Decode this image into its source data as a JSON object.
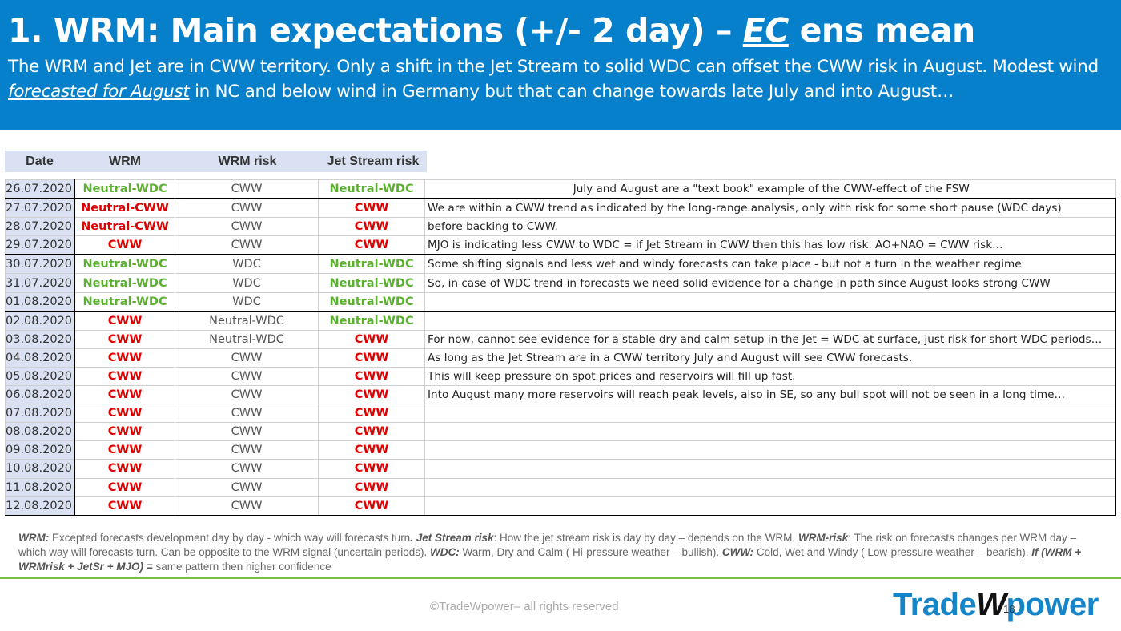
{
  "header": {
    "title_pre": "1. WRM: Main expectations (+/- 2 day) – ",
    "title_ec": "EC",
    "title_post": " ens mean",
    "sub_a": "The WRM and Jet are in CWW territory. Only a shift in the Jet Stream to solid WDC can offset the CWW risk in August. Modest wind ",
    "sub_b": "forecasted for August",
    "sub_c": " in NC and below wind in Germany but that can change towards late July and into August…"
  },
  "table": {
    "headers": [
      "Date",
      "WRM",
      "WRM risk",
      "Jet Stream risk"
    ],
    "rows": [
      {
        "date": "26.07.2020",
        "wrm": "Neutral-WDC",
        "risk": "CWW",
        "jet": "Neutral-WDC",
        "comment": "July and August are a \"text book\" example of the CWW-effect of the FSW"
      },
      {
        "date": "27.07.2020",
        "wrm": "Neutral-CWW",
        "risk": "CWW",
        "jet": "CWW",
        "comment": "We are within a CWW trend as indicated by the long-range analysis, only with risk for some short pause (WDC days)"
      },
      {
        "date": "28.07.2020",
        "wrm": "Neutral-CWW",
        "risk": "CWW",
        "jet": "CWW",
        "comment": "before backing to CWW."
      },
      {
        "date": "29.07.2020",
        "wrm": "CWW",
        "risk": "CWW",
        "jet": "CWW",
        "comment": "MJO is indicating less CWW to WDC = if Jet Stream in CWW then this has low risk. AO+NAO = CWW risk…"
      },
      {
        "date": "30.07.2020",
        "wrm": "Neutral-WDC",
        "risk": "WDC",
        "jet": "Neutral-WDC",
        "comment": "Some shifting signals and less wet and windy forecasts can take place - but not a turn in the weather regime"
      },
      {
        "date": "31.07.2020",
        "wrm": "Neutral-WDC",
        "risk": "WDC",
        "jet": "Neutral-WDC",
        "comment": "So, in case of WDC trend in forecasts we need solid evidence for a change in path since August looks strong CWW"
      },
      {
        "date": "01.08.2020",
        "wrm": "Neutral-WDC",
        "risk": "WDC",
        "jet": "Neutral-WDC",
        "comment": ""
      },
      {
        "date": "02.08.2020",
        "wrm": "CWW",
        "risk": "Neutral-WDC",
        "jet": "Neutral-WDC",
        "comment": ""
      },
      {
        "date": "03.08.2020",
        "wrm": "CWW",
        "risk": "Neutral-WDC",
        "jet": "CWW",
        "comment": "For now, cannot see evidence for a stable dry and calm setup in the Jet = WDC at surface, just risk for short WDC periods…"
      },
      {
        "date": "04.08.2020",
        "wrm": "CWW",
        "risk": "CWW",
        "jet": "CWW",
        "comment": "As long as the Jet Stream are in a CWW territory July and August will see CWW forecasts."
      },
      {
        "date": "05.08.2020",
        "wrm": "CWW",
        "risk": "CWW",
        "jet": "CWW",
        "comment": "This will keep pressure on spot prices and reservoirs will fill up fast."
      },
      {
        "date": "06.08.2020",
        "wrm": "CWW",
        "risk": "CWW",
        "jet": "CWW",
        "comment": "Into August many more reservoirs will reach peak levels, also in SE, so any bull spot will not be seen in a long time…"
      },
      {
        "date": "07.08.2020",
        "wrm": "CWW",
        "risk": "CWW",
        "jet": "CWW",
        "comment": ""
      },
      {
        "date": "08.08.2020",
        "wrm": "CWW",
        "risk": "CWW",
        "jet": "CWW",
        "comment": ""
      },
      {
        "date": "09.08.2020",
        "wrm": "CWW",
        "risk": "CWW",
        "jet": "CWW",
        "comment": ""
      },
      {
        "date": "10.08.2020",
        "wrm": "CWW",
        "risk": "CWW",
        "jet": "CWW",
        "comment": ""
      },
      {
        "date": "11.08.2020",
        "wrm": "CWW",
        "risk": "CWW",
        "jet": "CWW",
        "comment": ""
      },
      {
        "date": "12.08.2020",
        "wrm": "CWW",
        "risk": "CWW",
        "jet": "CWW",
        "comment": ""
      }
    ]
  },
  "notes": {
    "k1": "WRM:",
    "t1": " Excepted forecasts development day by day - which way will forecasts turn",
    "k2": ".  Jet Stream risk",
    "t2": ": How the jet stream risk is day by day – depends on the WRM. ",
    "k3": "WRM-risk",
    "t3": ": The risk on forecasts changes per WRM day – which way will forecasts turn. Can be opposite to the WRM signal (uncertain periods). ",
    "k4": "WDC:",
    "t4": " Warm, Dry and Calm ( Hi-pressure weather – bullish). ",
    "k5": "CWW:",
    "t5": " Cold, Wet and Windy ( Low-pressure weather – bearish). ",
    "k6": "If (WRM + WRMrisk + JetSr + MJO) =",
    "t6": " same pattern then higher confidence"
  },
  "footer": {
    "copyright": "©TradeWpower– all rights reserved",
    "logo_a": "Trade",
    "logo_w": "W",
    "logo_b": "power",
    "page": "18"
  },
  "colors": {
    "header_bg": "#0780cc",
    "cww": "#e00000",
    "wdc": "#5bb030",
    "accent_rule": "#7ac143"
  }
}
